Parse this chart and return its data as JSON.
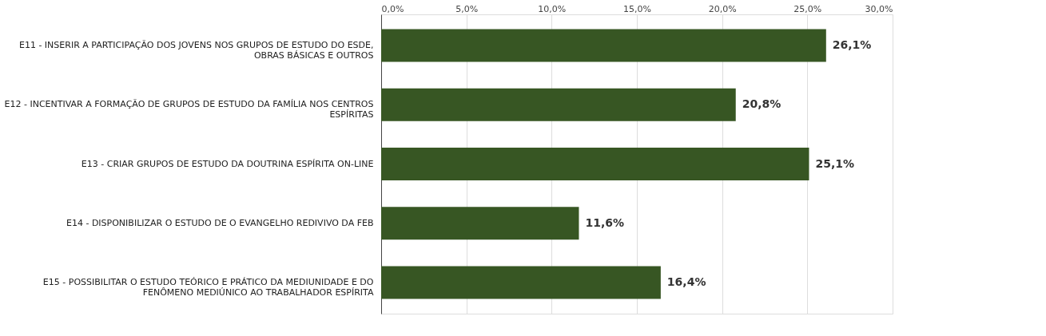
{
  "chart_data": {
    "type": "bar",
    "orientation": "horizontal",
    "categories": [
      "E11 - INSERIR A PARTICIPAÇÃO DOS JOVENS NOS GRUPOS DE ESTUDO DO ESDE, OBRAS BÁSICAS E OUTROS",
      "E12 - INCENTIVAR A FORMAÇÃO DE GRUPOS DE ESTUDO DA FAMÍLIA NOS CENTROS ESPÍRITAS",
      "E13 - CRIAR GRUPOS DE ESTUDO DA DOUTRINA ESPÍRITA ON-LINE",
      "E14 - DISPONIBILIZAR O ESTUDO DE O EVANGELHO REDIVIVO DA FEB",
      "E15 - POSSIBILITAR O ESTUDO TEÓRICO E PRÁTICO DA MEDIUNIDADE E DO FENÔMENO MEDIÚNICO AO TRABALHADOR ESPÍRITA"
    ],
    "values": [
      26.1,
      20.8,
      25.1,
      11.6,
      16.4
    ],
    "value_labels": [
      "26,1%",
      "20,8%",
      "25,1%",
      "11,6%",
      "16,4%"
    ],
    "color": "#375623",
    "xlim": [
      0,
      30
    ],
    "xticks": [
      {
        "value": 0,
        "label": "0,0%"
      },
      {
        "value": 5,
        "label": "5,0%"
      },
      {
        "value": 10,
        "label": "10,0%"
      },
      {
        "value": 15,
        "label": "15,0%"
      },
      {
        "value": 20,
        "label": "20,0%"
      },
      {
        "value": 25,
        "label": "25,0%"
      },
      {
        "value": 30,
        "label": "30,0%"
      }
    ],
    "grid": "x"
  }
}
